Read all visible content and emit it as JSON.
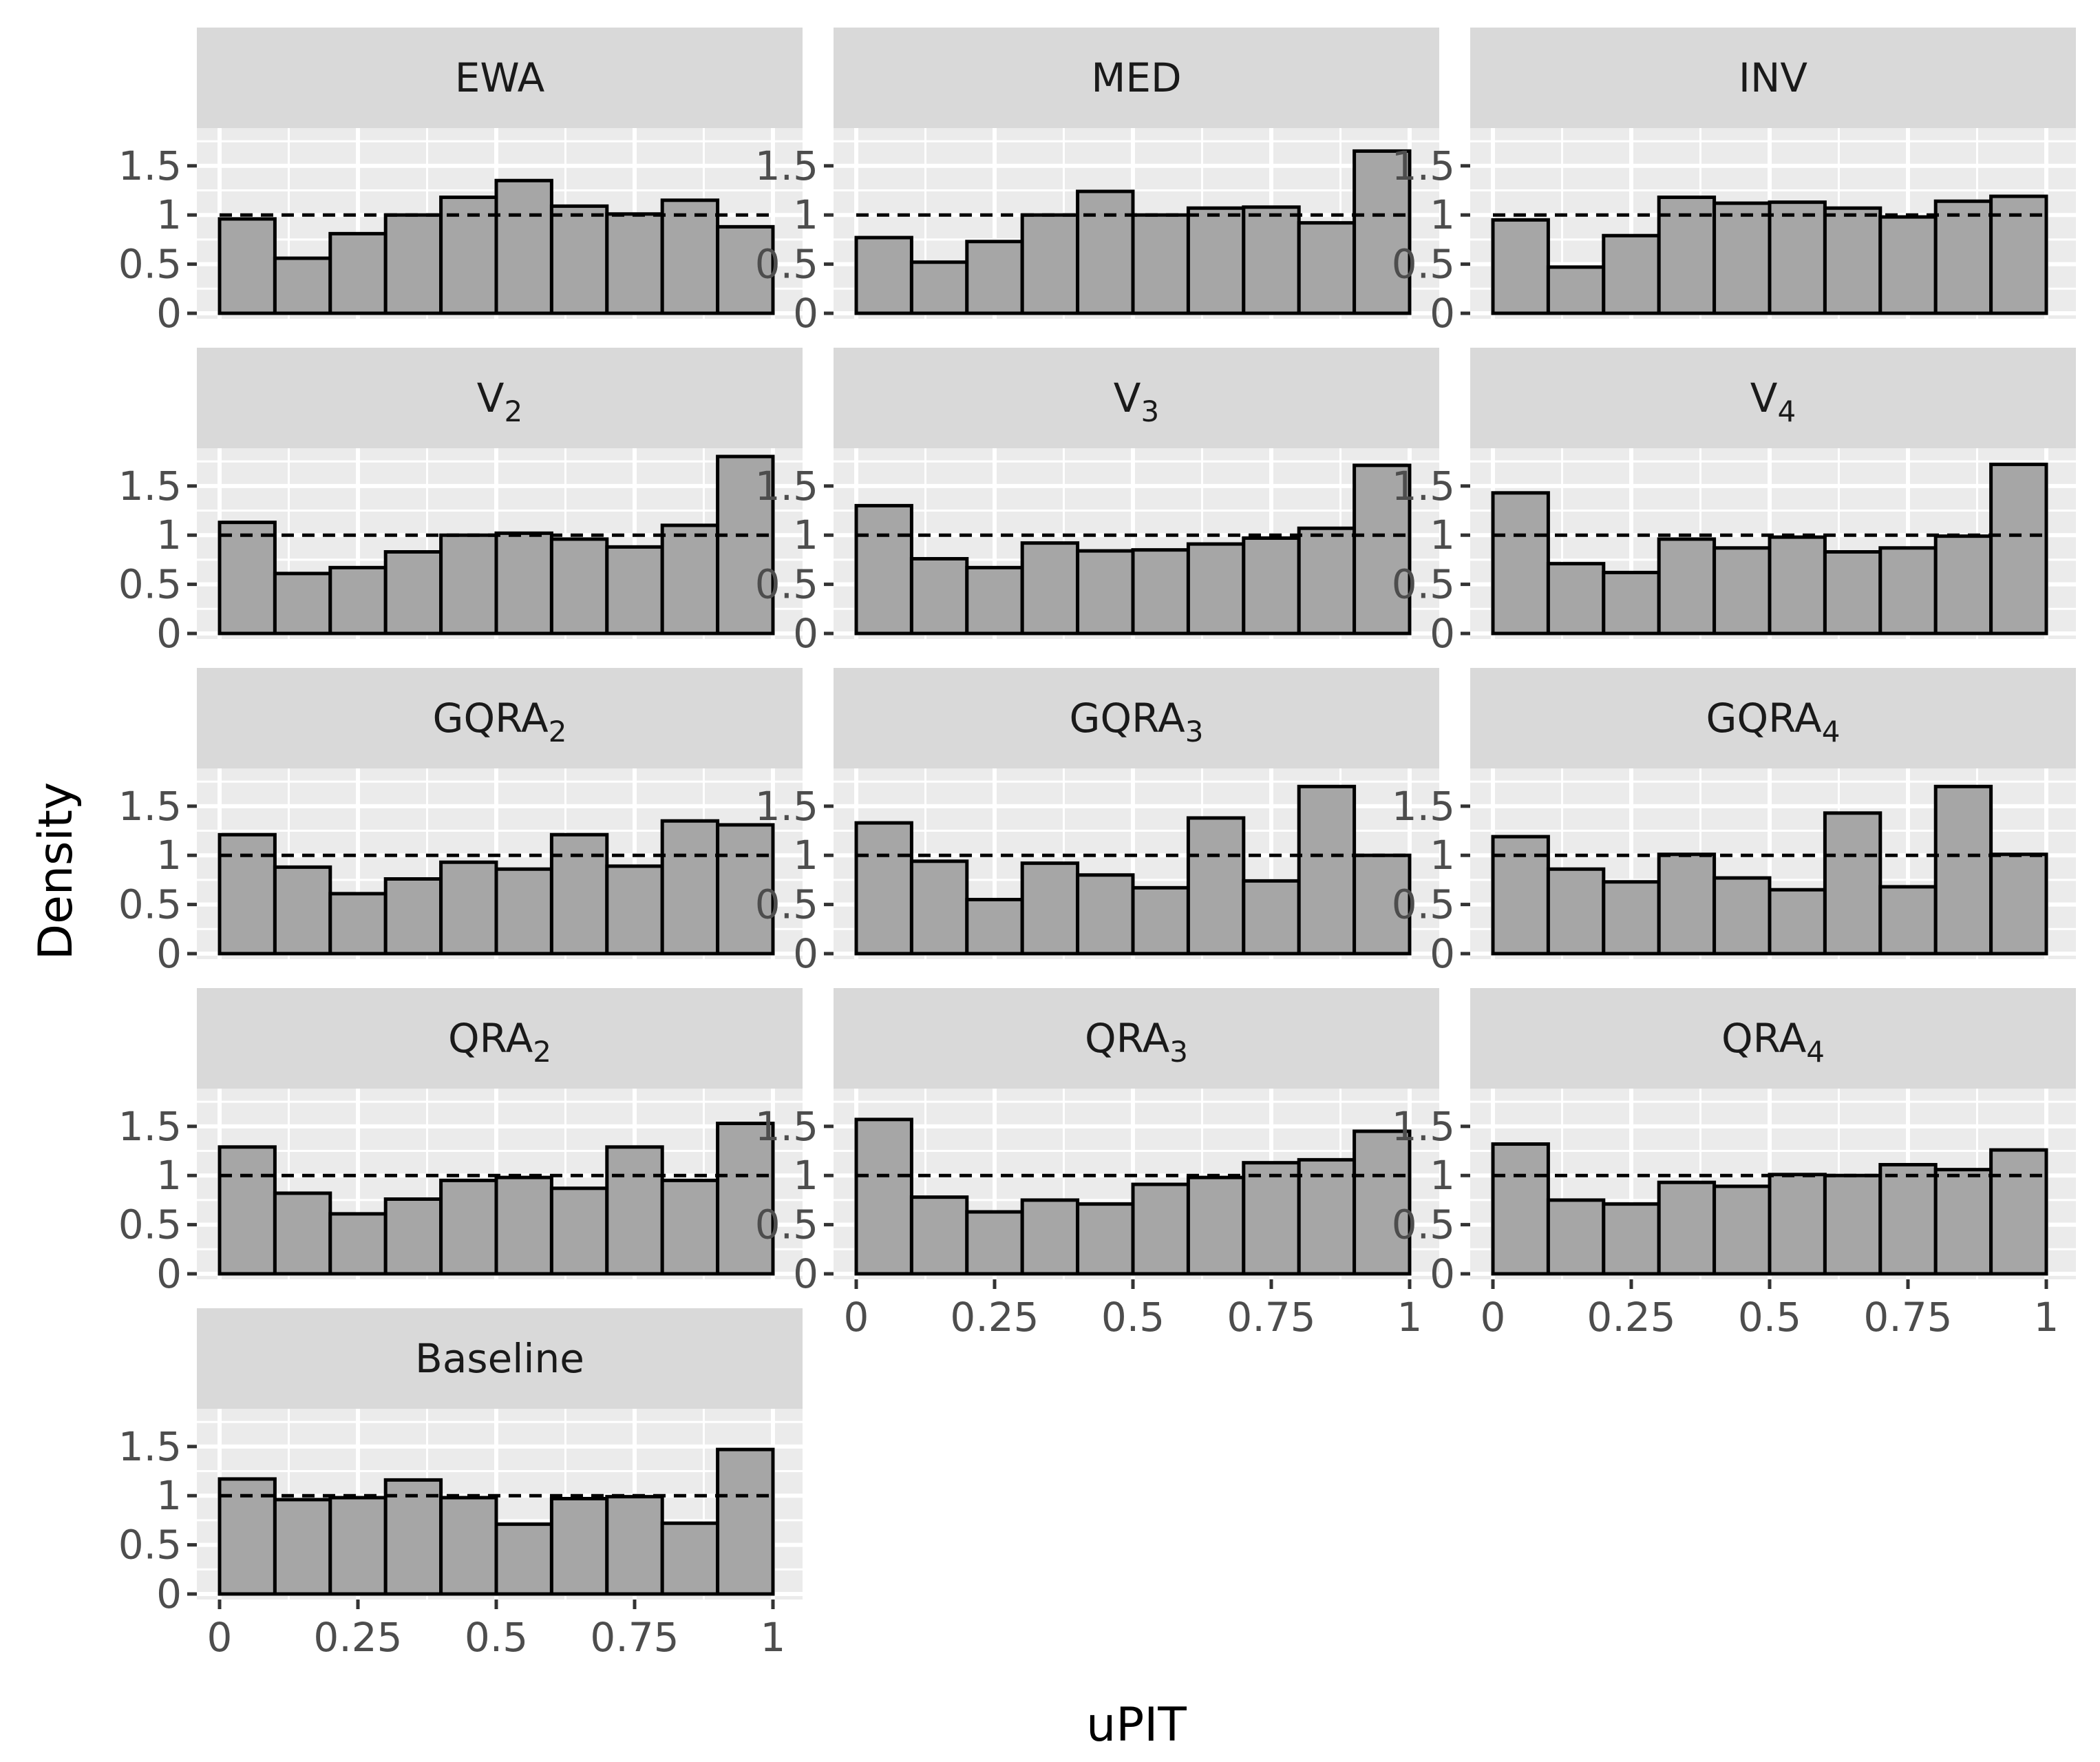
{
  "chart_data": {
    "type": "bar",
    "xlabel": "uPIT",
    "ylabel": "Density",
    "xlim": [
      0,
      1
    ],
    "ylim": [
      0,
      1.8
    ],
    "x_ticks": [
      "0",
      "0.25",
      "0.5",
      "0.75",
      "1"
    ],
    "y_ticks": [
      "0",
      "0.5",
      "1",
      "1.5"
    ],
    "reference_line": 1,
    "grid": true,
    "bin_edges": [
      0,
      0.1,
      0.2,
      0.3,
      0.4,
      0.5,
      0.6,
      0.7,
      0.8,
      0.9,
      1.0
    ],
    "colors": {
      "bar_fill": "#a6a6a6",
      "bar_stroke": "#000000",
      "panel_bg": "#ebebeb",
      "strip_bg": "#d9d9d9",
      "grid": "#ffffff"
    },
    "panels": [
      {
        "title": "EWA",
        "sub": "",
        "values": [
          0.96,
          0.56,
          0.81,
          1.0,
          1.18,
          1.35,
          1.09,
          1.01,
          1.15,
          0.88
        ]
      },
      {
        "title": "MED",
        "sub": "",
        "values": [
          0.77,
          0.52,
          0.73,
          1.0,
          1.24,
          1.0,
          1.07,
          1.08,
          0.92,
          1.65
        ]
      },
      {
        "title": "INV",
        "sub": "",
        "values": [
          0.95,
          0.47,
          0.79,
          1.18,
          1.12,
          1.13,
          1.07,
          0.98,
          1.14,
          1.19
        ]
      },
      {
        "title": "V",
        "sub": "2",
        "values": [
          1.13,
          0.61,
          0.67,
          0.83,
          1.0,
          1.02,
          0.96,
          0.88,
          1.1,
          1.8
        ]
      },
      {
        "title": "V",
        "sub": "3",
        "values": [
          1.3,
          0.76,
          0.67,
          0.92,
          0.84,
          0.85,
          0.91,
          0.97,
          1.07,
          1.71
        ]
      },
      {
        "title": "V",
        "sub": "4",
        "values": [
          1.43,
          0.71,
          0.62,
          0.96,
          0.87,
          0.98,
          0.83,
          0.87,
          0.99,
          1.72
        ]
      },
      {
        "title": "GQRA",
        "sub": "2",
        "values": [
          1.21,
          0.88,
          0.61,
          0.76,
          0.93,
          0.86,
          1.21,
          0.89,
          1.35,
          1.31
        ]
      },
      {
        "title": "GQRA",
        "sub": "3",
        "values": [
          1.33,
          0.94,
          0.55,
          0.92,
          0.8,
          0.67,
          1.38,
          0.74,
          1.7,
          1.0
        ]
      },
      {
        "title": "GQRA",
        "sub": "4",
        "values": [
          1.19,
          0.86,
          0.73,
          1.01,
          0.77,
          0.65,
          1.43,
          0.68,
          1.7,
          1.01
        ]
      },
      {
        "title": "QRA",
        "sub": "2",
        "values": [
          1.29,
          0.82,
          0.61,
          0.76,
          0.95,
          0.98,
          0.87,
          1.29,
          0.95,
          1.53
        ]
      },
      {
        "title": "QRA",
        "sub": "3",
        "values": [
          1.57,
          0.78,
          0.63,
          0.75,
          0.71,
          0.91,
          0.98,
          1.13,
          1.16,
          1.45
        ]
      },
      {
        "title": "QRA",
        "sub": "4",
        "values": [
          1.32,
          0.75,
          0.71,
          0.93,
          0.89,
          1.01,
          1.0,
          1.11,
          1.06,
          1.26
        ]
      },
      {
        "title": "Baseline",
        "sub": "",
        "values": [
          1.17,
          0.96,
          0.98,
          1.16,
          0.98,
          0.71,
          0.97,
          0.99,
          0.72,
          1.47
        ]
      }
    ]
  }
}
